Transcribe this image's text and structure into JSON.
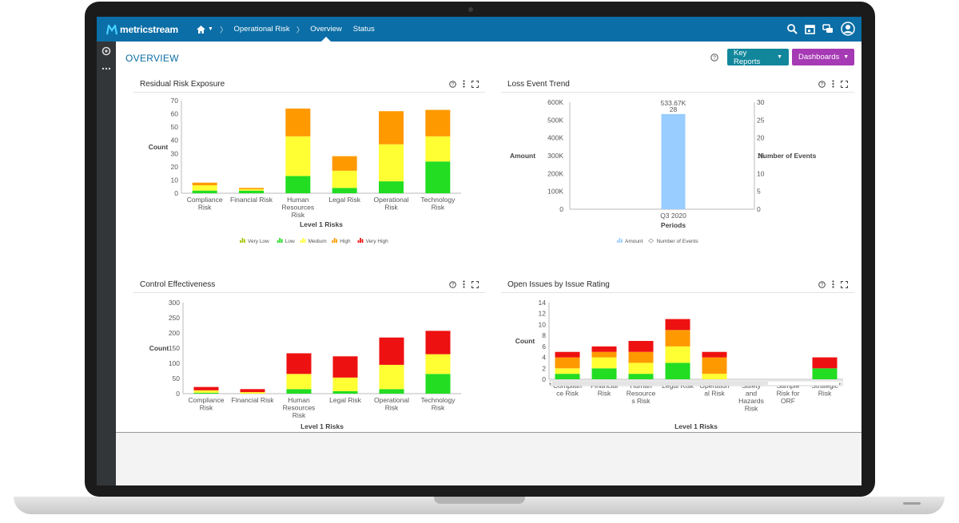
{
  "app": {
    "logo_text": "metricstream",
    "breadcrumbs": [
      "Operational Risk",
      "Overview",
      "Status"
    ],
    "active_tab": "Overview",
    "page_title": "OVERVIEW",
    "buttons": {
      "key_reports": "Key Reports",
      "dashboards": "Dashboards"
    },
    "icons": [
      "home-icon",
      "search-icon",
      "calendar-icon",
      "chat-icon",
      "user-icon",
      "help-icon",
      "more-icon",
      "expand-icon",
      "settings-icon"
    ],
    "colors": {
      "topbar": "#0b6ea6",
      "key_reports": "#12879c",
      "dashboards": "#a63ab4",
      "very_low": "#a4c400",
      "low": "#22dd22",
      "medium": "#ffff33",
      "high": "#ff9900",
      "very_high": "#ee1111",
      "amount": "#99ccff"
    }
  },
  "panels": {
    "residual": {
      "title": "Residual Risk Exposure"
    },
    "loss": {
      "title": "Loss Event Trend"
    },
    "control": {
      "title": "Control Effectiveness"
    },
    "issues": {
      "title": "Open Issues by Issue Rating"
    }
  },
  "chart_data": [
    {
      "id": "residual",
      "type": "bar",
      "stacked": true,
      "categories": [
        "Compliance Risk",
        "Financial Risk",
        "Human Resources Risk",
        "Legal Risk",
        "Operational Risk",
        "Technology Risk"
      ],
      "series": [
        {
          "name": "Very Low",
          "color": "#a4c400",
          "values": [
            0,
            0,
            0,
            0,
            0,
            0
          ]
        },
        {
          "name": "Low",
          "color": "#22dd22",
          "values": [
            2,
            2,
            13,
            4,
            9,
            24
          ]
        },
        {
          "name": "Medium",
          "color": "#ffff33",
          "values": [
            4,
            1,
            30,
            13,
            28,
            19
          ]
        },
        {
          "name": "High",
          "color": "#ff9900",
          "values": [
            2,
            1,
            21,
            11,
            25,
            20
          ]
        }
      ],
      "xlabel": "Level 1 Risks",
      "ylabel": "Count",
      "yticks": [
        0,
        10,
        20,
        30,
        40,
        50,
        60,
        70
      ],
      "ylim": [
        0,
        70
      ],
      "legend": [
        {
          "name": "Very Low",
          "color": "#a4c400"
        },
        {
          "name": "Low",
          "color": "#22dd22"
        },
        {
          "name": "Medium",
          "color": "#ffff33"
        },
        {
          "name": "High",
          "color": "#ff9900"
        },
        {
          "name": "Very High",
          "color": "#ee1111"
        }
      ]
    },
    {
      "id": "loss",
      "type": "bar",
      "categories": [
        "Q3 2020"
      ],
      "series": [
        {
          "name": "Amount",
          "color": "#99ccff",
          "values": [
            533670
          ]
        },
        {
          "name": "Number of Events",
          "color": "#999999",
          "values": [
            28
          ]
        }
      ],
      "data_labels": [
        "533.67K",
        "28"
      ],
      "xlabel": "Periods",
      "ylabel": "Amount",
      "y2label": "Number of Events",
      "yticks": [
        "0",
        "100K",
        "200K",
        "300K",
        "400K",
        "500K",
        "600K"
      ],
      "y2ticks": [
        "0",
        "5",
        "10",
        "15",
        "20",
        "25",
        "30"
      ],
      "ylim": [
        0,
        600000
      ],
      "y2lim": [
        0,
        30
      ]
    },
    {
      "id": "control",
      "type": "bar",
      "stacked": true,
      "categories": [
        "Compliance Risk",
        "Financial Risk",
        "Human Resources Risk",
        "Legal Risk",
        "Operational Risk",
        "Technology Risk"
      ],
      "series": [
        {
          "name": "Low",
          "color": "#22dd22",
          "values": [
            3,
            0,
            15,
            8,
            15,
            65
          ]
        },
        {
          "name": "Medium",
          "color": "#ffff33",
          "values": [
            8,
            5,
            50,
            45,
            80,
            65
          ]
        },
        {
          "name": "Very High",
          "color": "#ee1111",
          "values": [
            11,
            10,
            68,
            70,
            90,
            77
          ]
        }
      ],
      "xlabel": "Level 1 Risks",
      "ylabel": "Count",
      "yticks": [
        0,
        50,
        100,
        150,
        200,
        250,
        300
      ],
      "ylim": [
        0,
        300
      ]
    },
    {
      "id": "issues",
      "type": "bar",
      "stacked": true,
      "categories": [
        "Compliance Risk",
        "Financial Risk",
        "Human Resources Risk",
        "Legal Risk",
        "Operational Risk",
        "Safety and Hazards Risk",
        "Sample Risk for ORF",
        "Strategic Risk"
      ],
      "series": [
        {
          "name": "Low",
          "color": "#22dd22",
          "values": [
            1,
            2,
            1,
            3,
            0,
            0,
            0,
            2
          ]
        },
        {
          "name": "Medium",
          "color": "#ffff33",
          "values": [
            1,
            2,
            2,
            3,
            1,
            0,
            0,
            0
          ]
        },
        {
          "name": "High",
          "color": "#ff9900",
          "values": [
            2,
            1,
            2,
            3,
            3,
            0,
            0,
            0
          ]
        },
        {
          "name": "Very High",
          "color": "#ee1111",
          "values": [
            1,
            1,
            2,
            2,
            1,
            0,
            0,
            2
          ]
        }
      ],
      "xlabel": "Level 1 Risks",
      "ylabel": "Count",
      "yticks": [
        0,
        2,
        4,
        6,
        8,
        10,
        12,
        14
      ],
      "ylim": [
        0,
        14
      ]
    }
  ]
}
